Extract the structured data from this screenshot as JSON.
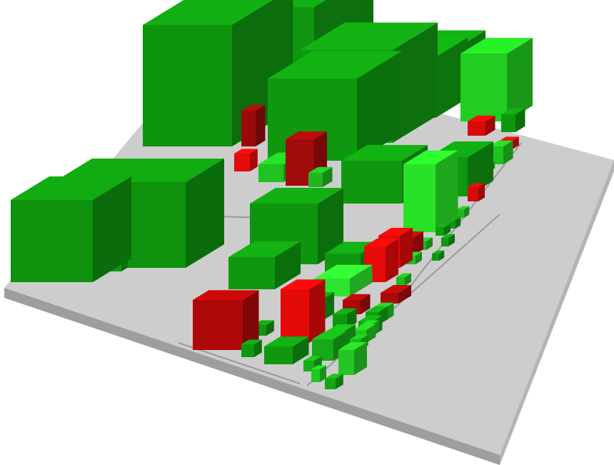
{
  "colors": {
    "background": "#ffffff",
    "platform_top": "#cdcdcd",
    "platform_side": "#b4b4b4",
    "platform_front": "#9e9e9e",
    "groove": "#9a9a9a"
  },
  "blocks": [
    {
      "name": "block-a1",
      "color": "#109c10"
    },
    {
      "name": "block-a2",
      "color": "#129e12"
    },
    {
      "name": "block-a3",
      "color": "#0fa00f"
    },
    {
      "name": "block-a4",
      "color": "#10a010"
    },
    {
      "name": "block-a5",
      "color": "#12a012"
    },
    {
      "name": "block-a6",
      "color": "#12a612"
    },
    {
      "name": "block-a7",
      "color": "#10a210"
    },
    {
      "name": "block-b1",
      "color": "#0f9a0f"
    },
    {
      "name": "block-b2",
      "color": "#0f9a0f"
    },
    {
      "name": "block-b3",
      "color": "#109c10"
    },
    {
      "name": "block-b4",
      "color": "#10a010"
    },
    {
      "name": "block-b5",
      "color": "#10a010"
    },
    {
      "name": "block-b6",
      "color": "#109e10"
    },
    {
      "name": "block-r1",
      "color": "#a00c0c"
    },
    {
      "name": "block-r2",
      "color": "#a80c0c"
    },
    {
      "name": "block-r3",
      "color": "#f00c0c"
    },
    {
      "name": "block-r4",
      "color": "#b80808"
    },
    {
      "name": "block-r5",
      "color": "#b40a0a"
    },
    {
      "name": "block-r6",
      "color": "#f00a0a"
    },
    {
      "name": "block-r7",
      "color": "#f40a0a"
    },
    {
      "name": "block-r8",
      "color": "#ee0a0a"
    },
    {
      "name": "block-r9",
      "color": "#b00a0a"
    },
    {
      "name": "block-r10",
      "color": "#c00a0a"
    },
    {
      "name": "block-r11",
      "color": "#b40a0a"
    },
    {
      "name": "block-r12",
      "color": "#e40a0a"
    },
    {
      "name": "block-r13",
      "color": "#e60a0a"
    },
    {
      "name": "block-r14",
      "color": "#e00a0a"
    },
    {
      "name": "block-l1",
      "color": "#2aee2a"
    },
    {
      "name": "block-l2",
      "color": "#30f030"
    },
    {
      "name": "block-l3",
      "color": "#22d822"
    },
    {
      "name": "block-l4",
      "color": "#22d222"
    },
    {
      "name": "block-l5",
      "color": "#26d026"
    },
    {
      "name": "block-s1",
      "color": "#10a010"
    },
    {
      "name": "block-s2",
      "color": "#129c12"
    },
    {
      "name": "block-s3",
      "color": "#10a010"
    },
    {
      "name": "block-s4",
      "color": "#10a010"
    },
    {
      "name": "block-s5",
      "color": "#10a010"
    },
    {
      "name": "block-s6",
      "color": "#12a012"
    },
    {
      "name": "block-s7",
      "color": "#18b218"
    },
    {
      "name": "block-s8",
      "color": "#18b418"
    },
    {
      "name": "block-s9",
      "color": "#10a010"
    },
    {
      "name": "block-s10",
      "color": "#14a814"
    },
    {
      "name": "block-s11",
      "color": "#14a614"
    },
    {
      "name": "block-s12",
      "color": "#16ae16"
    },
    {
      "name": "block-s13",
      "color": "#1ab41a"
    },
    {
      "name": "block-s14",
      "color": "#22c822"
    },
    {
      "name": "block-s15",
      "color": "#1cc21c"
    },
    {
      "name": "block-s16",
      "color": "#22d022"
    },
    {
      "name": "block-s17",
      "color": "#22cc22"
    },
    {
      "name": "block-s18",
      "color": "#22c822"
    },
    {
      "name": "block-s19",
      "color": "#22cc22"
    },
    {
      "name": "block-s20",
      "color": "#22c022"
    },
    {
      "name": "block-s21",
      "color": "#22c822"
    },
    {
      "name": "block-s22",
      "color": "#22c022"
    },
    {
      "name": "block-s23",
      "color": "#22c222"
    },
    {
      "name": "block-s24",
      "color": "#22cc22"
    },
    {
      "name": "block-s25",
      "color": "#10a010"
    },
    {
      "name": "block-s26",
      "color": "#12a412"
    },
    {
      "name": "block-s27",
      "color": "#10a010"
    },
    {
      "name": "block-s28",
      "color": "#10a010"
    },
    {
      "name": "block-s29",
      "color": "#10a010"
    },
    {
      "name": "block-s30",
      "color": "#22c222"
    },
    {
      "name": "block-s31",
      "color": "#1ab41a"
    },
    {
      "name": "block-s32",
      "color": "#22c422"
    },
    {
      "name": "block-s33",
      "color": "#22c822"
    },
    {
      "name": "block-s34",
      "color": "#1aba1a"
    },
    {
      "name": "block-s35",
      "color": "#22cc22"
    }
  ]
}
